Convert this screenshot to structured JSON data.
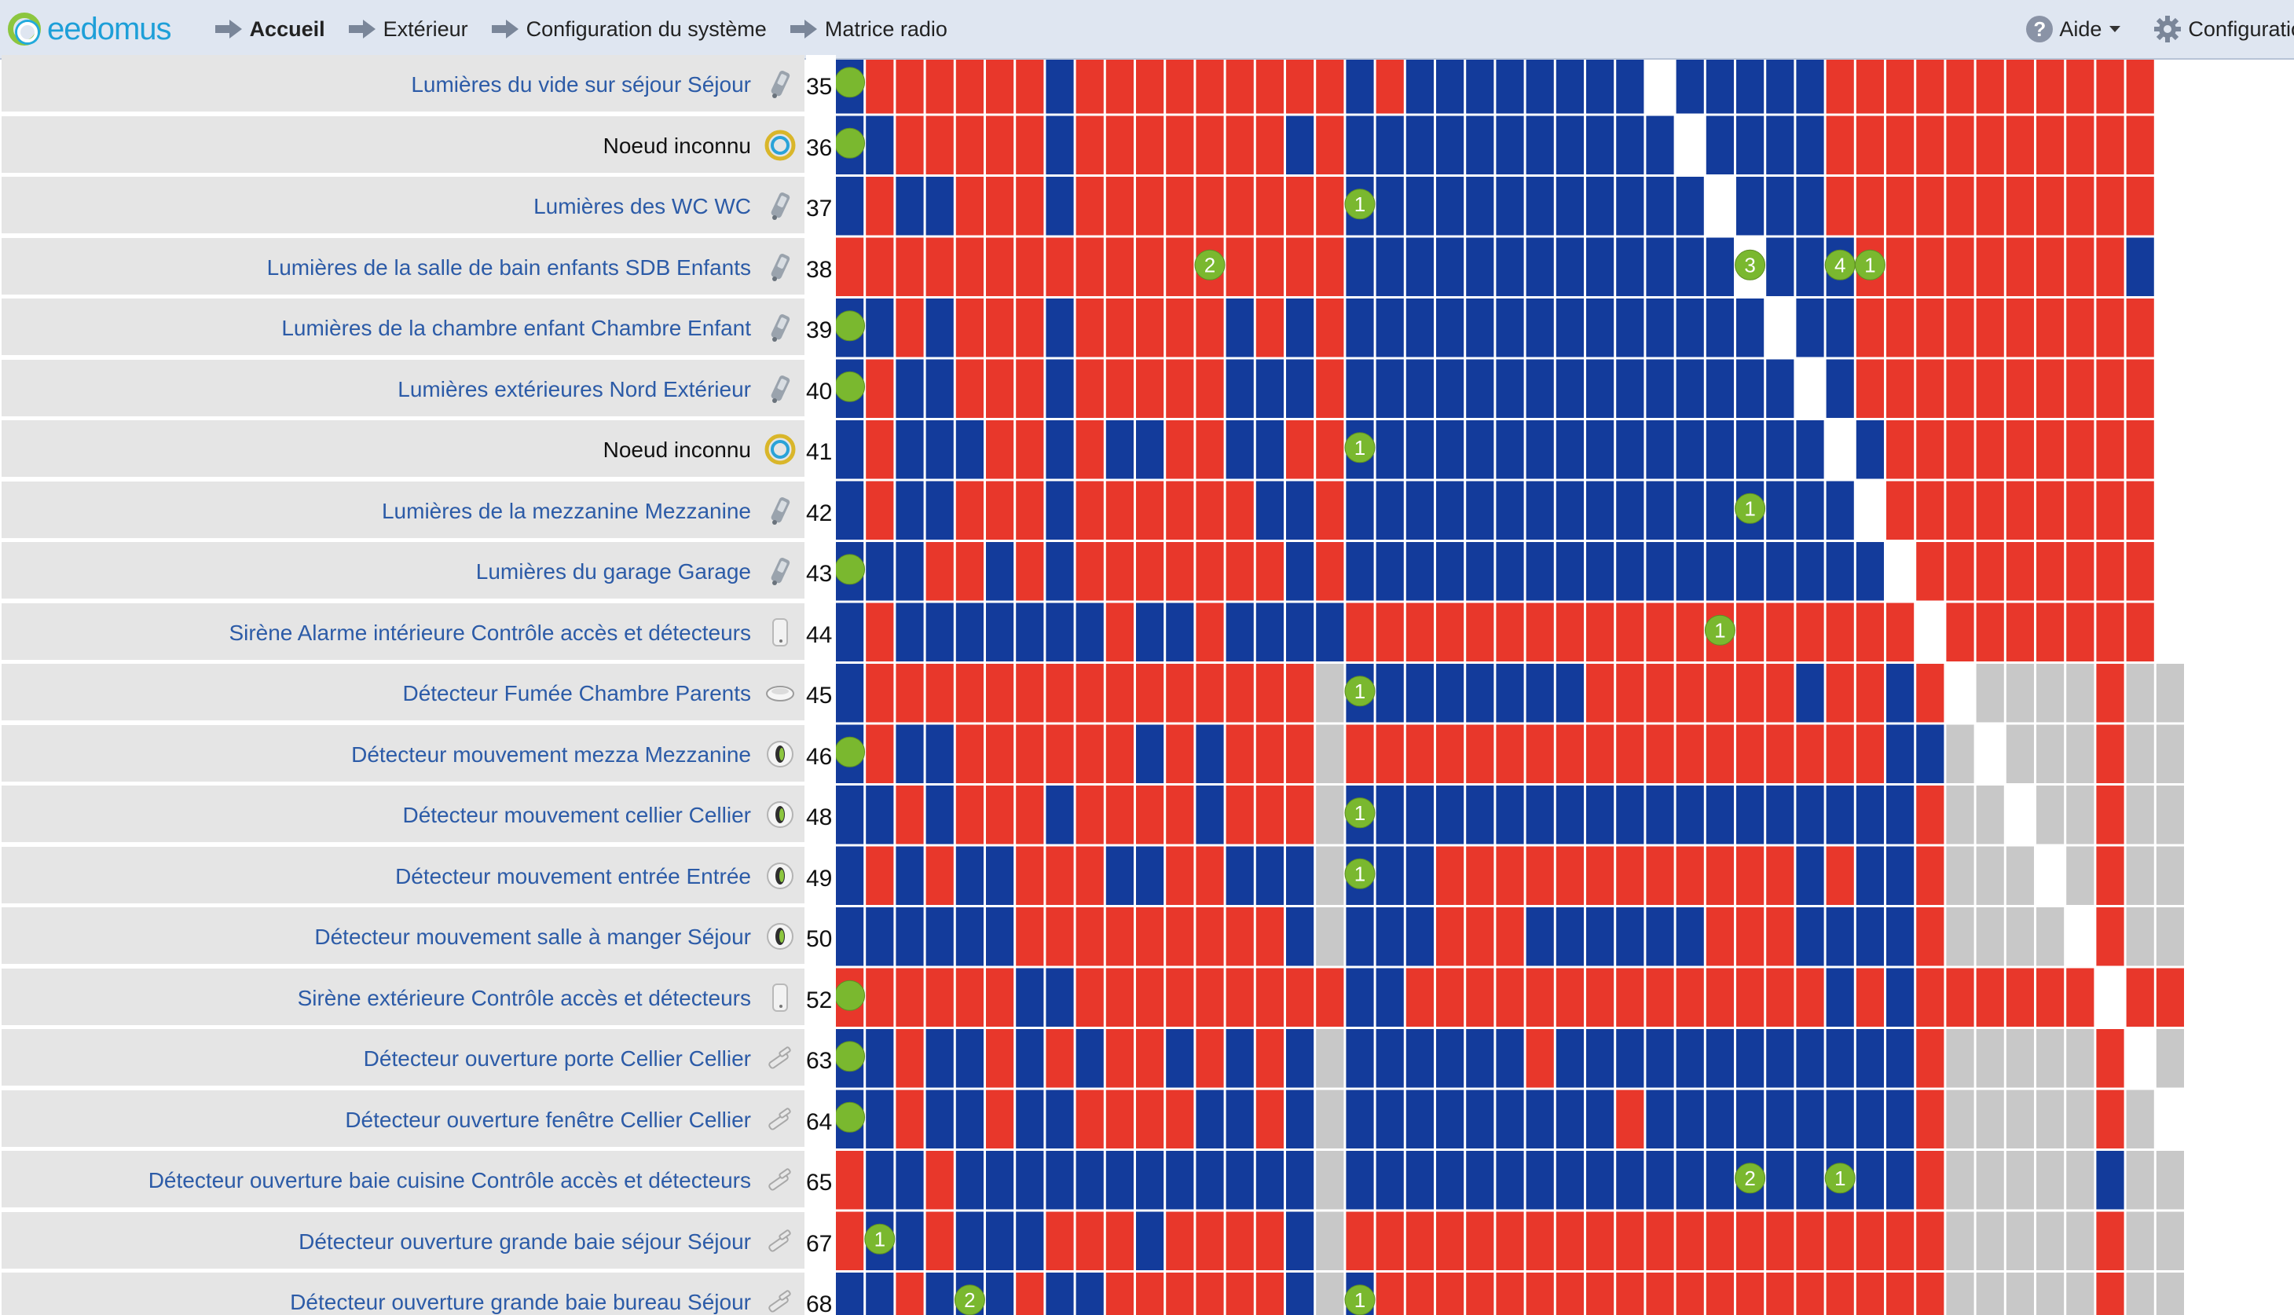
{
  "header": {
    "logo_text": "eedomus",
    "nav": [
      {
        "label": "Accueil",
        "bold": true
      },
      {
        "label": "Extérieur",
        "bold": false
      },
      {
        "label": "Configuration du système",
        "bold": false
      },
      {
        "label": "Matrice radio",
        "bold": false
      }
    ],
    "help_label": "Aide",
    "help_icon_glyph": "?",
    "config_label": "Configuration"
  },
  "colors": {
    "red": "#e8372b",
    "blue": "#133b9b",
    "gray": "#c8c8c8",
    "white": "#ffffff",
    "green": "#7ab82f",
    "link": "#2c5ba7"
  },
  "rows": [
    {
      "name": "Lumières du vide sur séjour Séjour",
      "icon": "light-switch-icon",
      "id": "35",
      "known": true
    },
    {
      "name": "Noeud inconnu",
      "icon": "eedomus-ring-icon",
      "id": "36",
      "known": false
    },
    {
      "name": "Lumières des WC WC",
      "icon": "light-switch-icon",
      "id": "37",
      "known": true
    },
    {
      "name": "Lumières de la salle de bain enfants SDB Enfants",
      "icon": "light-switch-icon",
      "id": "38",
      "known": true
    },
    {
      "name": "Lumières de la chambre enfant Chambre Enfant",
      "icon": "light-switch-icon",
      "id": "39",
      "known": true
    },
    {
      "name": "Lumières extérieures Nord Extérieur",
      "icon": "light-switch-icon",
      "id": "40",
      "known": true
    },
    {
      "name": "Noeud inconnu",
      "icon": "eedomus-ring-icon",
      "id": "41",
      "known": false
    },
    {
      "name": "Lumières de la mezzanine Mezzanine",
      "icon": "light-switch-icon",
      "id": "42",
      "known": true
    },
    {
      "name": "Lumières du garage Garage",
      "icon": "light-switch-icon",
      "id": "43",
      "known": true
    },
    {
      "name": "Sirène Alarme intérieure Contrôle accès et détecteurs",
      "icon": "siren-icon",
      "id": "44",
      "known": true
    },
    {
      "name": "Détecteur Fumée Chambre Parents",
      "icon": "smoke-detector-icon",
      "id": "45",
      "known": true
    },
    {
      "name": "Détecteur mouvement mezza Mezzanine",
      "icon": "motion-sensor-icon",
      "id": "46",
      "known": true
    },
    {
      "name": "Détecteur mouvement cellier Cellier",
      "icon": "motion-sensor-icon",
      "id": "48",
      "known": true
    },
    {
      "name": "Détecteur mouvement entrée Entrée",
      "icon": "motion-sensor-icon",
      "id": "49",
      "known": true
    },
    {
      "name": "Détecteur mouvement salle à manger Séjour",
      "icon": "motion-sensor-icon",
      "id": "50",
      "known": true
    },
    {
      "name": "Sirène extérieure Contrôle accès et détecteurs",
      "icon": "siren-icon",
      "id": "52",
      "known": true
    },
    {
      "name": "Détecteur ouverture porte Cellier Cellier",
      "icon": "door-sensor-icon",
      "id": "63",
      "known": true
    },
    {
      "name": "Détecteur ouverture fenêtre Cellier Cellier",
      "icon": "door-sensor-icon",
      "id": "64",
      "known": true
    },
    {
      "name": "Détecteur ouverture baie cuisine Contrôle accès et détecteurs",
      "icon": "door-sensor-icon",
      "id": "65",
      "known": true
    },
    {
      "name": "Détecteur ouverture grande baie séjour Séjour",
      "icon": "door-sensor-icon",
      "id": "67",
      "known": true
    },
    {
      "name": "Détecteur ouverture grande baie bureau Séjour",
      "icon": "door-sensor-icon",
      "id": "68",
      "known": true
    }
  ],
  "matrix": {
    "legend_codes": {
      "R": "red",
      "B": "blue",
      "G": "gray",
      "W": "white"
    },
    "rows": [
      "BRRRRRRBRRRRRRRRRBRBBBBBBBBWBBBBBRRRRRRRRRRR",
      "BBRRRRRBRRRRRRRBRBBBBBBBBBBBWBBBBRRRRRRRRRRR",
      "BRBBRRRBRRRRRRRRRBBBBBBBBBBBBWBBBRRRRRRRRRRR",
      "RRRRRRRRRRRRRRRRRBBBBBBBBBBBBBWBBBRRRRRRRRRB",
      "BBRBRRRBRRRRRBRBRBBBBBBBBBBBBBBWBBRRRRRRRRRR",
      "BRBBRRRBRRRRRBBBRBBBBBBBBBBBBBBBWBRRRRRRRRRR",
      "BRBBBRRBRBBRRBBRRBBBBBBBBBBBBBBBBWBRRRRRRRRR",
      "BRBBRRRBRRRRRRBBRBBBBBBBBBBBBBBBBBWRRRRRRRRR",
      "BBBRRBRBRRRRRRRBRBBBBBBBBBBBBBBBBBBWRRRRRRRR",
      "BRBBBBBBBRBBRBBBBRRRRRRRRRRRRRRRRRRRWRRRRRRR",
      "BRRRRRRRRRRRRRRRGBBBBBBBBRRRRRRRBRRBRWGGGGRGG",
      "BRBBRRRRRRBRBRRRGRRRRRRRRRRRRRRRRRRBBGWGGGRGG",
      "BBRBRRRBRRRRBRRRGBBBBBBBBBBBBBBBBBBBRGGWGGRGG",
      "BRBRBBRRRBBRRBBBGBBBRRRRRRRRRRRRBRBBRGGGWGRGG",
      "BBBBBBRRRRRRRRRBGBBBRRRBBBBBBRRRBBBBRGGGGWRGG",
      "RRRRRRBBRRRRRRRRRBBRRRRRRRRRRRRRRBRBRRRRRRWRR",
      "BBRBBRBRBRRBRBRBGBBBBBBRBBBBBBBBBBBBRGGGGGRWG",
      "BBRBBRBBRRRRBBRBGBBBBBBBBBRBBBBBBBBBRGGGGGRGW",
      "RBBRBBBBBBBBBBBBGBBBBBBBBBBBBBBBBBBBRGGGGGBGG",
      "RBBRBBBRRRBRRRRBGRRRRRRRRRRRRRRRRRRRRGGGGGRGG",
      "BBRBBBRBBRRRRRRBGBRRRRRRRRRRRRRRRRRRRGGGGGRGG"
    ],
    "status_dots": [
      {
        "row": 0,
        "col": 0,
        "label": ""
      },
      {
        "row": 1,
        "col": 0,
        "label": ""
      },
      {
        "row": 4,
        "col": 0,
        "label": ""
      },
      {
        "row": 5,
        "col": 0,
        "label": ""
      },
      {
        "row": 8,
        "col": 0,
        "label": ""
      },
      {
        "row": 11,
        "col": 0,
        "label": ""
      },
      {
        "row": 15,
        "col": 0,
        "label": ""
      },
      {
        "row": 16,
        "col": 0,
        "label": ""
      },
      {
        "row": 17,
        "col": 0,
        "label": ""
      },
      {
        "row": 2,
        "col": 17,
        "label": "1"
      },
      {
        "row": 3,
        "col": 12,
        "label": "2"
      },
      {
        "row": 3,
        "col": 30,
        "label": "3"
      },
      {
        "row": 3,
        "col": 33,
        "label": "4"
      },
      {
        "row": 3,
        "col": 34,
        "label": "1"
      },
      {
        "row": 6,
        "col": 17,
        "label": "1"
      },
      {
        "row": 7,
        "col": 30,
        "label": "1"
      },
      {
        "row": 9,
        "col": 29,
        "label": "1"
      },
      {
        "row": 10,
        "col": 17,
        "label": "1"
      },
      {
        "row": 12,
        "col": 17,
        "label": "1"
      },
      {
        "row": 13,
        "col": 17,
        "label": "1"
      },
      {
        "row": 18,
        "col": 30,
        "label": "2"
      },
      {
        "row": 18,
        "col": 33,
        "label": "1"
      },
      {
        "row": 19,
        "col": 1,
        "label": "1"
      },
      {
        "row": 20,
        "col": 4,
        "label": "2"
      },
      {
        "row": 20,
        "col": 17,
        "label": "1"
      }
    ]
  }
}
